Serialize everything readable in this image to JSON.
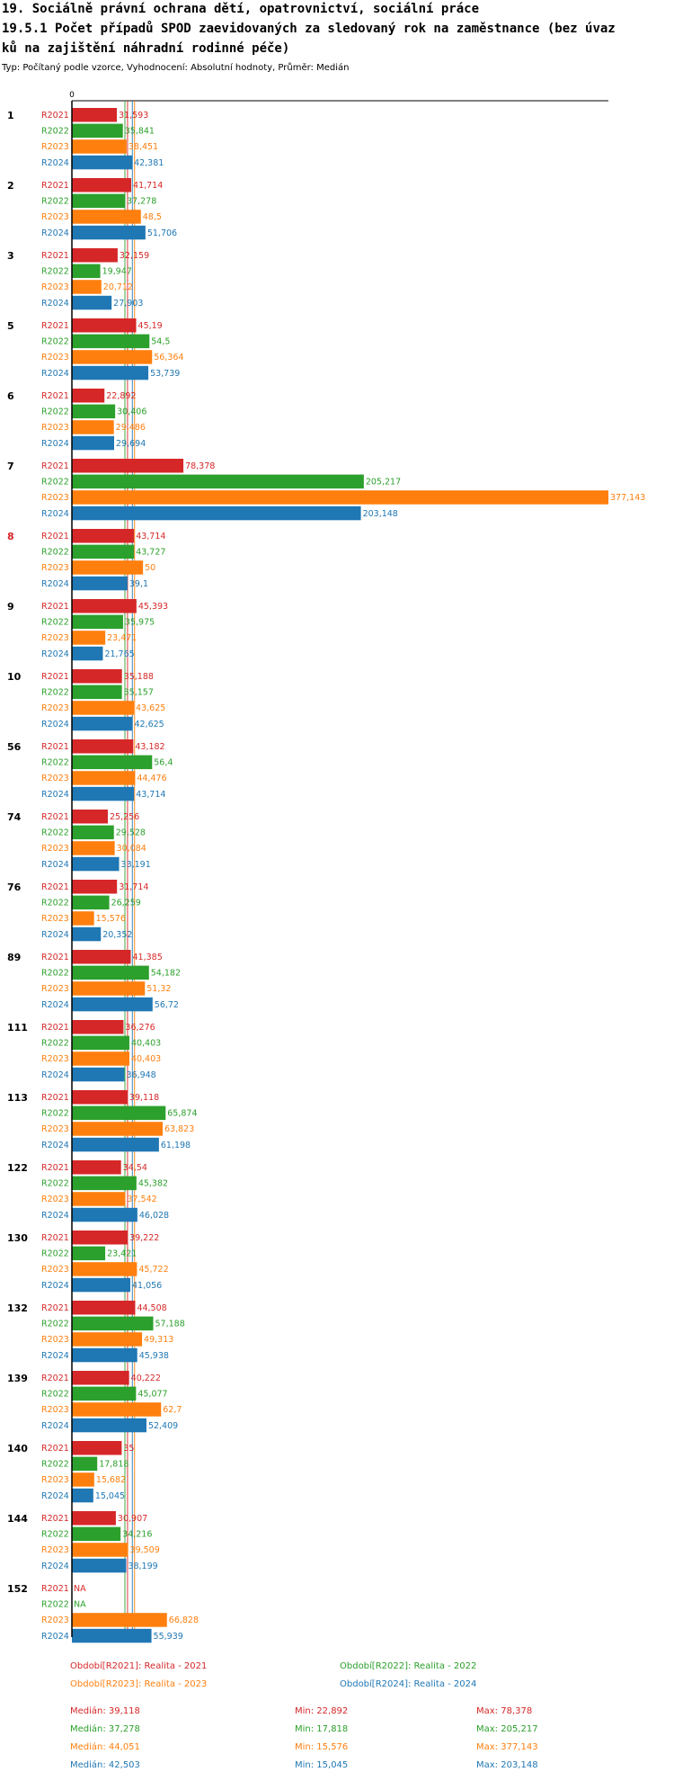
{
  "header": {
    "title_line1": "19. Sociálně právní ochrana dětí, opatrovnictví, sociální práce",
    "title_line2": "19.5.1 Počet případů SPOD zaevidovaných za sledovaný rok na zaměstnance (bez úvaz",
    "title_line3": "ků na zajištění náhradní rodinné péče)",
    "subtitle": "Typ: Počítaný podle vzorce, Vyhodnocení: Absolutní hodnoty, Průměr: Medián"
  },
  "colors": {
    "R2021": "#d62728",
    "R2022": "#2ca02c",
    "R2023": "#ff7f0e",
    "R2024": "#1f77b4",
    "highlight_label": "#d62728"
  },
  "chart_data": {
    "type": "bar",
    "orientation": "horizontal",
    "x_zero_label": "0",
    "xlim": [
      0,
      377.143
    ],
    "highlighted_category": "8",
    "categories": [
      "1",
      "2",
      "3",
      "5",
      "6",
      "7",
      "8",
      "9",
      "10",
      "56",
      "74",
      "76",
      "89",
      "111",
      "113",
      "122",
      "130",
      "132",
      "139",
      "140",
      "144",
      "152"
    ],
    "series": [
      {
        "name": "R2021",
        "color": "#d62728",
        "values": [
          31.593,
          41.714,
          32.159,
          45.19,
          22.892,
          78.378,
          43.714,
          45.393,
          35.188,
          43.182,
          25.256,
          31.714,
          41.385,
          36.276,
          39.118,
          34.54,
          39.222,
          44.508,
          40.222,
          35,
          30.907,
          null
        ],
        "labels": [
          "31,593",
          "41,714",
          "32,159",
          "45,19",
          "22,892",
          "78,378",
          "43,714",
          "45,393",
          "35,188",
          "43,182",
          "25,256",
          "31,714",
          "41,385",
          "36,276",
          "39,118",
          "34,54",
          "39,222",
          "44,508",
          "40,222",
          "35",
          "30,907",
          "NA"
        ]
      },
      {
        "name": "R2022",
        "color": "#2ca02c",
        "values": [
          35.841,
          37.278,
          19.947,
          54.5,
          30.406,
          205.217,
          43.727,
          35.975,
          35.157,
          56.4,
          29.528,
          26.259,
          54.182,
          40.403,
          65.874,
          45.382,
          23.421,
          57.188,
          45.077,
          17.818,
          34.216,
          null
        ],
        "labels": [
          "35,841",
          "37,278",
          "19,947",
          "54,5",
          "30,406",
          "205,217",
          "43,727",
          "35,975",
          "35,157",
          "56,4",
          "29,528",
          "26,259",
          "54,182",
          "40,403",
          "65,874",
          "45,382",
          "23,421",
          "57,188",
          "45,077",
          "17,818",
          "34,216",
          "NA"
        ]
      },
      {
        "name": "R2023",
        "color": "#ff7f0e",
        "values": [
          38.451,
          48.5,
          20.712,
          56.364,
          29.486,
          377.143,
          50,
          23.471,
          43.625,
          44.476,
          30.084,
          15.576,
          51.32,
          40.403,
          63.823,
          37.542,
          45.722,
          49.313,
          62.7,
          15.682,
          39.509,
          66.828
        ],
        "labels": [
          "38,451",
          "48,5",
          "20,712",
          "56,364",
          "29,486",
          "377,143",
          "50",
          "23,471",
          "43,625",
          "44,476",
          "30,084",
          "15,576",
          "51,32",
          "40,403",
          "63,823",
          "37,542",
          "45,722",
          "49,313",
          "62,7",
          "15,682",
          "39,509",
          "66,828"
        ]
      },
      {
        "name": "R2024",
        "color": "#1f77b4",
        "values": [
          42.381,
          51.706,
          27.903,
          53.739,
          29.694,
          203.148,
          39.1,
          21.765,
          42.625,
          43.714,
          33.191,
          20.352,
          56.72,
          36.948,
          61.198,
          46.028,
          41.056,
          45.938,
          52.409,
          15.045,
          38.199,
          55.939
        ],
        "labels": [
          "42,381",
          "51,706",
          "27,903",
          "53,739",
          "29,694",
          "203,148",
          "39,1",
          "21,765",
          "42,625",
          "43,714",
          "33,191",
          "20,352",
          "56,72",
          "36,948",
          "61,198",
          "46,028",
          "41,056",
          "45,938",
          "52,409",
          "15,045",
          "38,199",
          "55,939"
        ]
      }
    ],
    "median_lines": {
      "R2021": 39.118,
      "R2022": 37.278,
      "R2023": 44.051,
      "R2024": 42.503
    },
    "legend": [
      {
        "series": "R2021",
        "label": "Období[R2021]: Realita - 2021"
      },
      {
        "series": "R2022",
        "label": "Období[R2022]: Realita - 2022"
      },
      {
        "series": "R2023",
        "label": "Období[R2023]: Realita - 2023"
      },
      {
        "series": "R2024",
        "label": "Období[R2024]: Realita - 2024"
      }
    ],
    "stats": [
      {
        "series": "R2021",
        "median": "Medián: 39,118",
        "min": "Min: 22,892",
        "max": "Max: 78,378"
      },
      {
        "series": "R2022",
        "median": "Medián: 37,278",
        "min": "Min: 17,818",
        "max": "Max: 205,217"
      },
      {
        "series": "R2023",
        "median": "Medián: 44,051",
        "min": "Min: 15,576",
        "max": "Max: 377,143"
      },
      {
        "series": "R2024",
        "median": "Medián: 42,503",
        "min": "Min: 15,045",
        "max": "Max: 203,148"
      }
    ]
  }
}
